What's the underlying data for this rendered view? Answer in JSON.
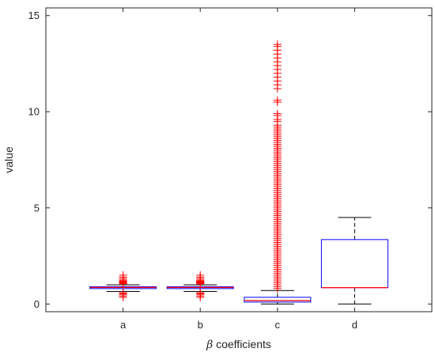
{
  "chart_data": {
    "type": "box",
    "title": "",
    "xlabel_symbol": "β",
    "xlabel_text": " coefficients",
    "ylabel": "value",
    "categories": [
      "a",
      "b",
      "c",
      "d"
    ],
    "ylim": [
      -0.4,
      15.4
    ],
    "yticks": [
      0,
      5,
      10,
      15
    ],
    "grid": false,
    "colors": {
      "box": "#0000ff",
      "median": "#ff0000",
      "whisker": "#000000",
      "outlier": "#ff0000",
      "axis": "#262626"
    },
    "boxes": [
      {
        "category": "a",
        "q1": 0.8,
        "median": 0.86,
        "q3": 0.9,
        "whisker_low": 0.65,
        "whisker_high": 1.0,
        "outliers": [
          0.35,
          0.42,
          0.5,
          0.55,
          0.58,
          1.05,
          1.08,
          1.1,
          1.13,
          1.15,
          1.18,
          1.2,
          1.25,
          1.33,
          1.4,
          1.5
        ]
      },
      {
        "category": "b",
        "q1": 0.8,
        "median": 0.86,
        "q3": 0.9,
        "whisker_low": 0.65,
        "whisker_high": 1.0,
        "outliers": [
          0.35,
          0.42,
          0.5,
          0.55,
          0.58,
          1.05,
          1.08,
          1.1,
          1.13,
          1.15,
          1.18,
          1.2,
          1.25,
          1.33,
          1.4,
          1.5
        ]
      },
      {
        "category": "c",
        "q1": 0.1,
        "median": 0.18,
        "q3": 0.35,
        "whisker_low": 0.0,
        "whisker_high": 0.7,
        "outliers": [
          0.8,
          0.9,
          1.0,
          1.1,
          1.2,
          1.3,
          1.4,
          1.5,
          1.6,
          1.7,
          1.8,
          1.9,
          2.0,
          2.1,
          2.2,
          2.3,
          2.4,
          2.5,
          2.6,
          2.7,
          2.8,
          2.9,
          3.0,
          3.1,
          3.2,
          3.3,
          3.4,
          3.5,
          3.6,
          3.7,
          3.8,
          3.9,
          4.0,
          4.1,
          4.2,
          4.3,
          4.4,
          4.5,
          4.6,
          4.7,
          4.8,
          4.9,
          5.0,
          5.1,
          5.2,
          5.3,
          5.4,
          5.5,
          5.6,
          5.7,
          5.8,
          5.9,
          6.0,
          6.1,
          6.2,
          6.3,
          6.4,
          6.5,
          6.6,
          6.7,
          6.8,
          6.9,
          7.0,
          7.1,
          7.2,
          7.3,
          7.4,
          7.5,
          7.6,
          7.7,
          7.8,
          7.9,
          8.0,
          8.1,
          8.2,
          8.3,
          8.4,
          8.5,
          8.6,
          8.7,
          8.8,
          8.9,
          9.0,
          9.1,
          9.2,
          9.3,
          9.5,
          9.6,
          9.8,
          9.9,
          10.5,
          10.6,
          11.2,
          11.4,
          11.6,
          11.8,
          12.0,
          12.2,
          12.4,
          12.6,
          12.8,
          13.0,
          13.2,
          13.4,
          13.5
        ]
      },
      {
        "category": "d",
        "q1": 0.85,
        "median": 0.85,
        "q3": 3.35,
        "whisker_low": 0.0,
        "whisker_high": 4.5,
        "outliers": []
      }
    ]
  }
}
